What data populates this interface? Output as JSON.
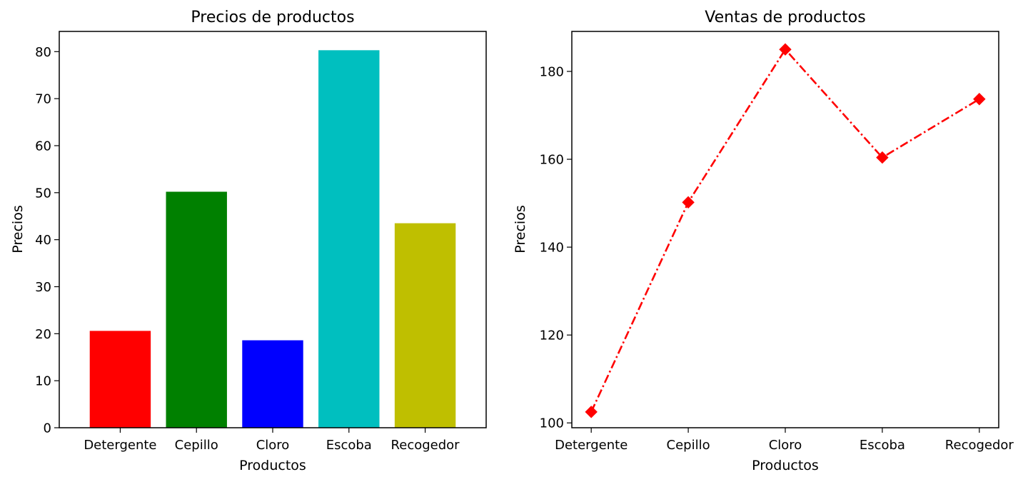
{
  "chart_data": [
    {
      "type": "bar",
      "title": "Precios de productos",
      "xlabel": "Productos",
      "ylabel": "Precios",
      "categories": [
        "Detergente",
        "Cepillo",
        "Cloro",
        "Escoba",
        "Recogedor"
      ],
      "values": [
        20.6,
        50.2,
        18.6,
        80.3,
        43.5
      ],
      "colors": [
        "#ff0000",
        "#008000",
        "#0000ff",
        "#00bfbf",
        "#bfbf00"
      ],
      "ylim": [
        0,
        84.3
      ],
      "yticks": [
        0,
        10,
        20,
        30,
        40,
        50,
        60,
        70,
        80
      ],
      "grid": false,
      "legend": "none"
    },
    {
      "type": "line",
      "title": "Ventas de productos",
      "xlabel": "Productos",
      "ylabel": "Precios",
      "categories": [
        "Detergente",
        "Cepillo",
        "Cloro",
        "Escoba",
        "Recogedor"
      ],
      "values": [
        102.5,
        150.2,
        185.0,
        160.4,
        173.7
      ],
      "color": "#ff0000",
      "line_style": "dash-dot",
      "marker": "diamond",
      "ylim": [
        98.9,
        189.1
      ],
      "yticks": [
        100,
        120,
        140,
        160,
        180
      ],
      "grid": false,
      "legend": "none"
    }
  ]
}
